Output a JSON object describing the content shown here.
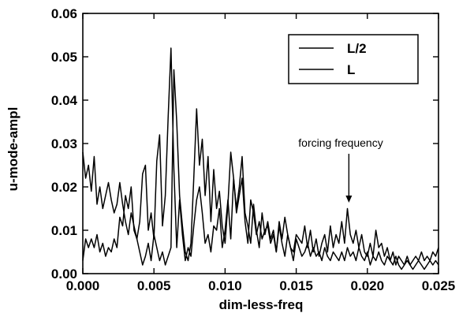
{
  "chart_data": {
    "type": "line",
    "xlabel": "dim-less-freq",
    "ylabel": "u-mode-ampl",
    "xlim": [
      0.0,
      0.025
    ],
    "ylim": [
      0.0,
      0.06
    ],
    "xticks": [
      "0.000",
      "0.005",
      "0.010",
      "0.015",
      "0.020",
      "0.025"
    ],
    "yticks": [
      "0.00",
      "0.01",
      "0.02",
      "0.03",
      "0.04",
      "0.05",
      "0.06"
    ],
    "grid": false,
    "legend_position": "top-right",
    "annotation": {
      "text": "forcing frequency",
      "x": 0.0187,
      "y": 0.016
    },
    "series": [
      {
        "name": "L/2",
        "x": [
          0.0,
          0.0002,
          0.0004,
          0.0006,
          0.0008,
          0.001,
          0.0012,
          0.0014,
          0.0016,
          0.0018,
          0.002,
          0.0022,
          0.0024,
          0.0026,
          0.0028,
          0.003,
          0.0032,
          0.0034,
          0.0036,
          0.0038,
          0.004,
          0.0042,
          0.0044,
          0.0046,
          0.0048,
          0.005,
          0.0052,
          0.0054,
          0.0056,
          0.0058,
          0.006,
          0.0062,
          0.0064,
          0.0066,
          0.0068,
          0.007,
          0.0072,
          0.0074,
          0.0076,
          0.0078,
          0.008,
          0.0082,
          0.0084,
          0.0086,
          0.0088,
          0.009,
          0.0092,
          0.0094,
          0.0096,
          0.0098,
          0.01,
          0.0102,
          0.0104,
          0.0106,
          0.0108,
          0.011,
          0.0112,
          0.0114,
          0.0116,
          0.0118,
          0.012,
          0.0122,
          0.0124,
          0.0126,
          0.0128,
          0.013,
          0.0132,
          0.0134,
          0.0136,
          0.0138,
          0.014,
          0.0142,
          0.0144,
          0.0146,
          0.0148,
          0.015,
          0.0152,
          0.0154,
          0.0156,
          0.0158,
          0.016,
          0.0162,
          0.0164,
          0.0166,
          0.0168,
          0.017,
          0.0172,
          0.0174,
          0.0176,
          0.0178,
          0.018,
          0.0182,
          0.0184,
          0.0186,
          0.0188,
          0.019,
          0.0192,
          0.0194,
          0.0196,
          0.0198,
          0.02,
          0.0202,
          0.0204,
          0.0206,
          0.0208,
          0.021,
          0.0212,
          0.0214,
          0.0216,
          0.0218,
          0.022,
          0.0222,
          0.0224,
          0.0226,
          0.0228,
          0.023,
          0.0232,
          0.0234,
          0.0236,
          0.0238,
          0.024,
          0.0242,
          0.0244,
          0.0246,
          0.0248,
          0.025
        ],
        "values": [
          0.028,
          0.022,
          0.025,
          0.019,
          0.027,
          0.016,
          0.02,
          0.015,
          0.018,
          0.021,
          0.017,
          0.014,
          0.016,
          0.021,
          0.016,
          0.012,
          0.009,
          0.014,
          0.011,
          0.008,
          0.012,
          0.023,
          0.025,
          0.01,
          0.014,
          0.008,
          0.026,
          0.032,
          0.011,
          0.018,
          0.036,
          0.052,
          0.024,
          0.006,
          0.017,
          0.009,
          0.003,
          0.006,
          0.004,
          0.011,
          0.017,
          0.02,
          0.014,
          0.007,
          0.009,
          0.005,
          0.011,
          0.01,
          0.015,
          0.006,
          0.01,
          0.017,
          0.008,
          0.022,
          0.015,
          0.02,
          0.027,
          0.014,
          0.011,
          0.007,
          0.016,
          0.01,
          0.006,
          0.014,
          0.009,
          0.012,
          0.008,
          0.01,
          0.005,
          0.011,
          0.007,
          0.004,
          0.009,
          0.006,
          0.003,
          0.008,
          0.006,
          0.004,
          0.005,
          0.007,
          0.004,
          0.006,
          0.004,
          0.005,
          0.003,
          0.006,
          0.004,
          0.003,
          0.005,
          0.004,
          0.003,
          0.005,
          0.003,
          0.006,
          0.004,
          0.005,
          0.003,
          0.006,
          0.004,
          0.003,
          0.005,
          0.002,
          0.004,
          0.003,
          0.005,
          0.003,
          0.002,
          0.004,
          0.003,
          0.002,
          0.004,
          0.002,
          0.001,
          0.002,
          0.003,
          0.002,
          0.001,
          0.002,
          0.003,
          0.002,
          0.001,
          0.002,
          0.003,
          0.002,
          0.003,
          0.002
        ]
      },
      {
        "name": "L",
        "x": [
          0.0,
          0.0002,
          0.0004,
          0.0006,
          0.0008,
          0.001,
          0.0012,
          0.0014,
          0.0016,
          0.0018,
          0.002,
          0.0022,
          0.0024,
          0.0026,
          0.0028,
          0.003,
          0.0032,
          0.0034,
          0.0036,
          0.0038,
          0.004,
          0.0042,
          0.0044,
          0.0046,
          0.0048,
          0.005,
          0.0052,
          0.0054,
          0.0056,
          0.0058,
          0.006,
          0.0062,
          0.0064,
          0.0066,
          0.0068,
          0.007,
          0.0072,
          0.0074,
          0.0076,
          0.0078,
          0.008,
          0.0082,
          0.0084,
          0.0086,
          0.0088,
          0.009,
          0.0092,
          0.0094,
          0.0096,
          0.0098,
          0.01,
          0.0102,
          0.0104,
          0.0106,
          0.0108,
          0.011,
          0.0112,
          0.0114,
          0.0116,
          0.0118,
          0.012,
          0.0122,
          0.0124,
          0.0126,
          0.0128,
          0.013,
          0.0132,
          0.0134,
          0.0136,
          0.0138,
          0.014,
          0.0142,
          0.0144,
          0.0146,
          0.0148,
          0.015,
          0.0152,
          0.0154,
          0.0156,
          0.0158,
          0.016,
          0.0162,
          0.0164,
          0.0166,
          0.0168,
          0.017,
          0.0172,
          0.0174,
          0.0176,
          0.0178,
          0.018,
          0.0182,
          0.0184,
          0.0186,
          0.0188,
          0.019,
          0.0192,
          0.0194,
          0.0196,
          0.0198,
          0.02,
          0.0202,
          0.0204,
          0.0206,
          0.0208,
          0.021,
          0.0212,
          0.0214,
          0.0216,
          0.0218,
          0.022,
          0.0222,
          0.0224,
          0.0226,
          0.0228,
          0.023,
          0.0232,
          0.0234,
          0.0236,
          0.0238,
          0.024,
          0.0242,
          0.0244,
          0.0246,
          0.0248,
          0.025
        ],
        "values": [
          0.003,
          0.008,
          0.006,
          0.008,
          0.006,
          0.009,
          0.005,
          0.007,
          0.004,
          0.006,
          0.005,
          0.008,
          0.006,
          0.013,
          0.011,
          0.018,
          0.015,
          0.02,
          0.01,
          0.008,
          0.005,
          0.002,
          0.004,
          0.007,
          0.003,
          0.009,
          0.006,
          0.003,
          0.005,
          0.002,
          0.004,
          0.006,
          0.047,
          0.035,
          0.018,
          0.011,
          0.005,
          0.003,
          0.007,
          0.022,
          0.038,
          0.025,
          0.031,
          0.018,
          0.027,
          0.012,
          0.024,
          0.015,
          0.019,
          0.011,
          0.007,
          0.016,
          0.028,
          0.022,
          0.014,
          0.018,
          0.022,
          0.012,
          0.007,
          0.017,
          0.014,
          0.009,
          0.012,
          0.008,
          0.01,
          0.011,
          0.007,
          0.009,
          0.005,
          0.012,
          0.008,
          0.013,
          0.009,
          0.006,
          0.005,
          0.009,
          0.008,
          0.007,
          0.011,
          0.006,
          0.01,
          0.005,
          0.008,
          0.004,
          0.007,
          0.009,
          0.005,
          0.011,
          0.006,
          0.009,
          0.007,
          0.012,
          0.007,
          0.015,
          0.009,
          0.007,
          0.01,
          0.006,
          0.009,
          0.005,
          0.004,
          0.007,
          0.004,
          0.01,
          0.006,
          0.007,
          0.004,
          0.006,
          0.003,
          0.005,
          0.002,
          0.004,
          0.003,
          0.002,
          0.004,
          0.002,
          0.003,
          0.004,
          0.003,
          0.005,
          0.003,
          0.004,
          0.003,
          0.005,
          0.004,
          0.006
        ]
      }
    ]
  }
}
